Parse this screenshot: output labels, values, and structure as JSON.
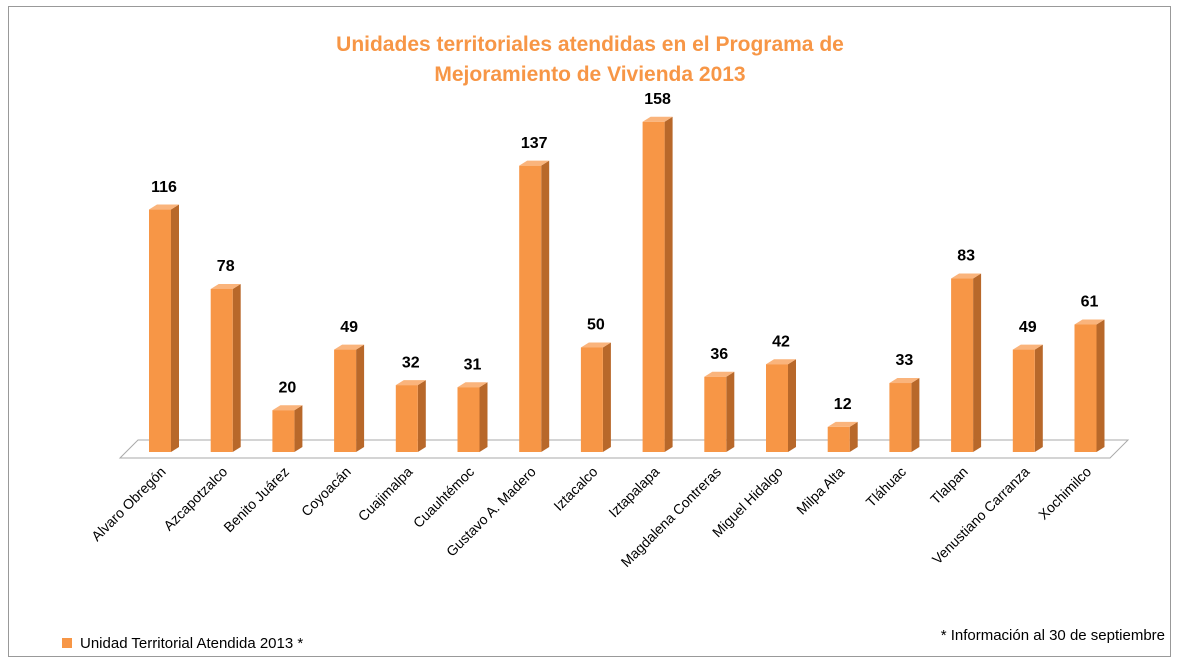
{
  "chart_data": {
    "type": "bar3d",
    "title": "Unidades territoriales atendidas en el Programa de Mejoramiento de Vivienda 2013",
    "categories": [
      "Alvaro Obregón",
      "Azcapotzalco",
      "Benito Juárez",
      "Coyoacán",
      "Cuajimalpa",
      "Cuauhtémoc",
      "Gustavo A. Madero",
      "Iztacalco",
      "Iztapalapa",
      "Magdalena Contreras",
      "Miguel Hidalgo",
      "Milpa Alta",
      "Tláhuac",
      "Tlalpan",
      "Venustiano Carranza",
      "Xochimilco"
    ],
    "series": [
      {
        "name": "Unidad Territorial Atendida 2013 *",
        "color": "#f79646",
        "values": [
          116,
          78,
          20,
          49,
          32,
          31,
          137,
          50,
          158,
          36,
          42,
          12,
          33,
          83,
          49,
          61
        ]
      }
    ],
    "annotation": "* Información al 30 de septiembre",
    "legend": "bottom-left"
  }
}
